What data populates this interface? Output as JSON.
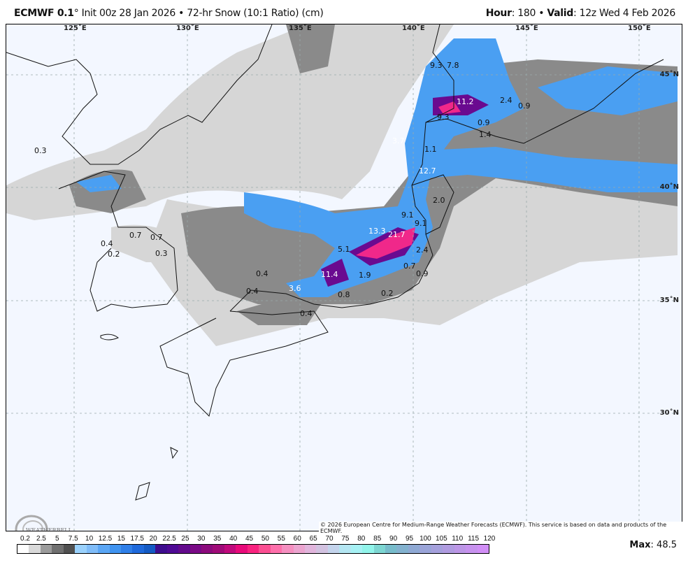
{
  "header": {
    "model": "ECMWF 0.1",
    "degree": "°",
    "init": "Init 00z 28 Jan 2026",
    "separator": "•",
    "product": "72-hr Snow (10:1 Ratio) (cm)",
    "hour_label": "Hour",
    "hour_value": ": 180",
    "valid_label": "Valid",
    "valid_value": ": 12z Wed 4 Feb 2026"
  },
  "map": {
    "lon_labels": [
      "125˚E",
      "130˚E",
      "135˚E",
      "140˚E",
      "145˚E",
      "150˚E"
    ],
    "lat_labels": [
      "45˚N",
      "40˚N",
      "35˚N",
      "30˚N"
    ],
    "point_values": [
      "0.3",
      "9.3",
      "7.8",
      "11.2",
      "9.3",
      "2.4",
      "0.9",
      "0.9",
      "1.4",
      "3.7",
      "1.1",
      "12.7",
      "2.0",
      "9.1",
      "9.1",
      "13.3",
      "21.7",
      "5.1",
      "2.4",
      "11.4",
      "1.9",
      "0.7",
      "0.9",
      "0.8",
      "0.2",
      "0.7",
      "0.7",
      "0.4",
      "0.2",
      "0.3",
      "0.4",
      "0.4",
      "3.6",
      "0.4"
    ],
    "copyright": "© 2026 European Centre for Medium-Range Weather Forecasts (ECMWF). This service is based on data and products of the ECMWF.",
    "logo_text": "WeatherBELL Analytics LLC"
  },
  "legend": {
    "ticks": [
      "0.2",
      "2.5",
      "5",
      "7.5",
      "10",
      "12.5",
      "15",
      "17.5",
      "20",
      "22.5",
      "25",
      "30",
      "35",
      "40",
      "45",
      "50",
      "55",
      "60",
      "65",
      "70",
      "75",
      "80",
      "85",
      "90",
      "95",
      "100",
      "105",
      "110",
      "115",
      "120"
    ],
    "colors": [
      "#ffffff",
      "#d9d9d9",
      "#9b9b9b",
      "#707070",
      "#505050",
      "#9ad1fc",
      "#7fbcf8",
      "#5aa6f5",
      "#3f93f0",
      "#2f7fe8",
      "#1e69db",
      "#145ac4",
      "#3e0d8e",
      "#4f0a94",
      "#630a8c",
      "#7a0a86",
      "#8c0b7c",
      "#a00b78",
      "#c00a7c",
      "#e80a7a",
      "#f9237f",
      "#fb4f92",
      "#fe70ab",
      "#f58fc0",
      "#eba4cf",
      "#e1b5dc",
      "#d2c2e0",
      "#c4d4ec",
      "#b4e6f2",
      "#a6f1f4",
      "#91f4ea",
      "#7dd6d2",
      "#77bccb",
      "#83b2cf",
      "#8fa9d4",
      "#9aa4d8",
      "#a5a0dc",
      "#b09be0",
      "#bc96e6",
      "#c792ee",
      "#d18ef6"
    ],
    "max_label": "Max",
    "max_value": ": 48.5"
  }
}
